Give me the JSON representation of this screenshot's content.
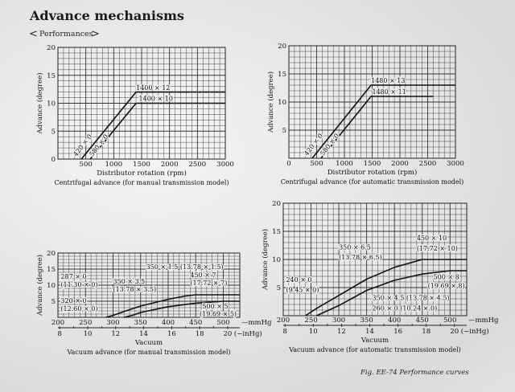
{
  "header": {
    "title": "Advance mechanisms",
    "subtitle_left": "<",
    "subtitle": "Performances",
    "subtitle_right": ">"
  },
  "figure_caption": "Fig. EE-74  Performance curves",
  "chart_data": [
    {
      "type": "line",
      "title": "Centrifugal advance (for manual transmission model)",
      "xlabel": "Distributor rotation (rpm)",
      "ylabel": "Advance (degree)",
      "xlim": [
        0,
        3000
      ],
      "ylim": [
        0,
        20
      ],
      "xticks": [
        500,
        1000,
        1500,
        2000,
        2500,
        3000
      ],
      "yticks": [
        0,
        5,
        10,
        15,
        20
      ],
      "grid": {
        "minor": [
          100,
          1
        ],
        "major": [
          500,
          5
        ]
      },
      "series": [
        {
          "name": "upper",
          "points": [
            [
              420,
              0
            ],
            [
              1400,
              12
            ],
            [
              3000,
              12
            ]
          ]
        },
        {
          "name": "lower",
          "points": [
            [
              580,
              0
            ],
            [
              1400,
              10
            ],
            [
              3000,
              10
            ]
          ]
        }
      ],
      "annotations": [
        {
          "text": "1400 × 12",
          "x": 1400,
          "y": 12.4
        },
        {
          "text": "1400 × 10",
          "x": 1450,
          "y": 10.4
        },
        {
          "text": "420 × 0",
          "x": 330,
          "y": 0.4
        },
        {
          "text": "580 × 0",
          "x": 620,
          "y": 0.4
        }
      ]
    },
    {
      "type": "line",
      "title": "Centrifugal advance (for automatic transmission model)",
      "xlabel": "Distributor rotation (rpm)",
      "ylabel": "Advance (degree)",
      "xlim": [
        0,
        3000
      ],
      "ylim": [
        0,
        20
      ],
      "xticks": [
        0,
        500,
        1000,
        1500,
        2000,
        2500,
        3000
      ],
      "yticks": [
        5,
        10,
        15,
        20
      ],
      "grid": {
        "minor": [
          100,
          1
        ],
        "major": [
          500,
          5
        ]
      },
      "series": [
        {
          "name": "upper",
          "points": [
            [
              420,
              0
            ],
            [
              1480,
              13
            ],
            [
              3000,
              13
            ]
          ]
        },
        {
          "name": "lower",
          "points": [
            [
              580,
              0
            ],
            [
              1480,
              11
            ],
            [
              2600,
              11
            ]
          ]
        }
      ],
      "annotations": [
        {
          "text": "1480 × 13",
          "x": 1480,
          "y": 13.4
        },
        {
          "text": "1480 × 11",
          "x": 1500,
          "y": 11.4
        },
        {
          "text": "420 × 0",
          "x": 330,
          "y": 0.4
        },
        {
          "text": "580 × 0",
          "x": 620,
          "y": 0.4
        }
      ]
    },
    {
      "type": "line",
      "title": "Vacuum advance (for manual transmission model)",
      "xlabel": "Vacuum",
      "ylabel": "Advance (degree)",
      "xlim": [
        200,
        530
      ],
      "ylim": [
        0,
        20
      ],
      "xticks": [
        200,
        250,
        300,
        350,
        400,
        450,
        500
      ],
      "x_unit": "—mmHg",
      "yticks": [
        5,
        10,
        15,
        20
      ],
      "secondary_x": {
        "ticks": [
          8,
          10,
          12,
          14,
          16,
          18,
          20
        ],
        "unit": "(−inHg)",
        "factor": 25.4
      },
      "grid": {
        "minor": [
          10,
          1
        ],
        "major": [
          50,
          5
        ]
      },
      "series": [
        {
          "name": "upper",
          "points": [
            [
              287,
              0
            ],
            [
              300,
              0.6
            ],
            [
              325,
              2.1
            ],
            [
              350,
              3.5
            ],
            [
              400,
              5.6
            ],
            [
              430,
              6.6
            ],
            [
              450,
              7
            ],
            [
              530,
              7
            ]
          ]
        },
        {
          "name": "lower",
          "points": [
            [
              320,
              0
            ],
            [
              335,
              0.6
            ],
            [
              350,
              1.5
            ],
            [
              400,
              3.3
            ],
            [
              450,
              4.4
            ],
            [
              500,
              5
            ],
            [
              530,
              5
            ]
          ]
        }
      ],
      "annotations": [
        {
          "text": "287 × 0",
          "x": 282,
          "y": 2.6
        },
        {
          "text": "(11.30 × 0)",
          "x": 282,
          "y": 0.5
        },
        {
          "text": "350 × 3.5",
          "x": 353,
          "y": 5.0
        },
        {
          "text": "(13.78 × 3.5)",
          "x": 350,
          "y": 3.9
        },
        {
          "text": "450 × 7",
          "x": 446,
          "y": 8.1
        },
        {
          "text": "(17.72 × 7)",
          "x": 442,
          "y": 6.8
        },
        {
          "text": "320 × 0",
          "x": 320,
          "y": 0.9
        },
        {
          "text": "(12.60 × 0)",
          "x": 322,
          "y": -0.4
        },
        {
          "text": "350 × 1.5 (13.78 × 1.5)",
          "x": 356,
          "y": 2.4
        },
        {
          "text": "500 × 5",
          "x": 495,
          "y": 3.6
        },
        {
          "text": "(19.69 × 5)",
          "x": 487,
          "y": 2.1
        }
      ]
    },
    {
      "type": "line",
      "title": "Vacuum advance (for automatic transmission model)",
      "xlabel": "Vacuum",
      "ylabel": "Advance (degree)",
      "xlim": [
        200,
        530
      ],
      "ylim": [
        0,
        20
      ],
      "xticks": [
        200,
        250,
        300,
        350,
        400,
        450,
        500
      ],
      "x_unit": "—mmHg",
      "yticks": [
        5,
        10,
        15,
        20
      ],
      "secondary_x": {
        "ticks": [
          8,
          10,
          12,
          14,
          16,
          18,
          20
        ],
        "unit": "(−inHg)",
        "factor": 25.4
      },
      "grid": {
        "minor": [
          10,
          1
        ],
        "major": [
          50,
          5
        ]
      },
      "series": [
        {
          "name": "upper",
          "points": [
            [
              240,
              0
            ],
            [
              260,
              1.3
            ],
            [
              300,
              3.6
            ],
            [
              350,
              6.5
            ],
            [
              400,
              8.6
            ],
            [
              450,
              10
            ],
            [
              530,
              10
            ]
          ]
        },
        {
          "name": "lower",
          "points": [
            [
              260,
              0
            ],
            [
              300,
              1.8
            ],
            [
              350,
              4.5
            ],
            [
              400,
              6.3
            ],
            [
              450,
              7.4
            ],
            [
              500,
              8
            ],
            [
              530,
              8
            ]
          ]
        }
      ],
      "annotations": [
        {
          "text": "240 × 0",
          "x": 232,
          "y": 3.0
        },
        {
          "text": "(9.45 × 0)",
          "x": 234,
          "y": 1.5
        },
        {
          "text": "350 × 6.5",
          "x": 345,
          "y": 7.6
        },
        {
          "text": "(13.78 × 6.5)",
          "x": 340,
          "y": 6.3
        },
        {
          "text": "450 × 10",
          "x": 447,
          "y": 11.0
        },
        {
          "text": "(17.72 × 10)",
          "x": 440,
          "y": 9.9
        },
        {
          "text": "350 × 4.5 (13.78 × 4.5)",
          "x": 350,
          "y": 5.0
        },
        {
          "text": "260 × 0 (10.24 × 0)",
          "x": 265,
          "y": 0.3
        },
        {
          "text": "500 × 8",
          "x": 496,
          "y": 7.0
        },
        {
          "text": "(19.69 × 8)",
          "x": 490,
          "y": 5.6
        }
      ]
    }
  ]
}
